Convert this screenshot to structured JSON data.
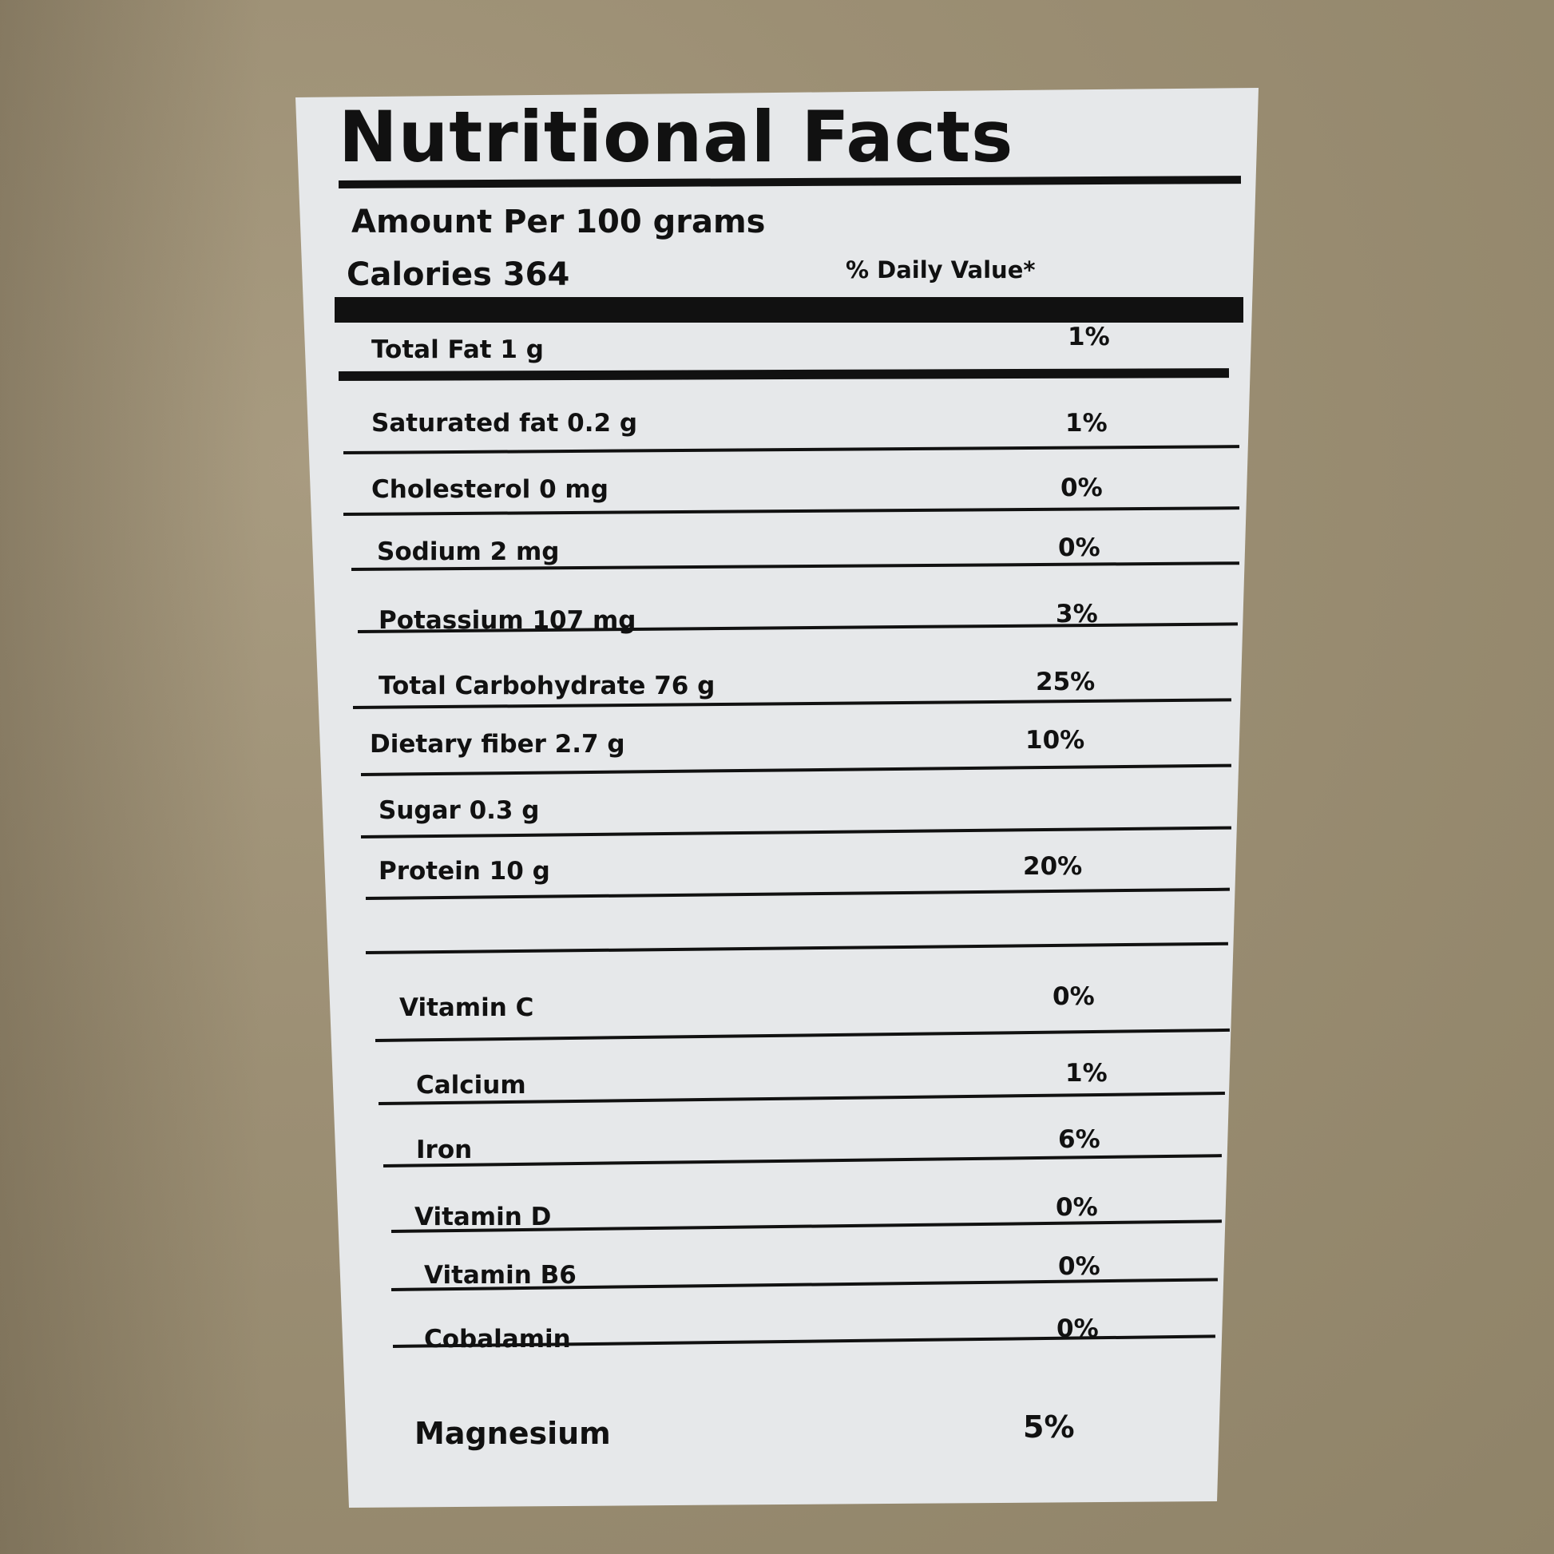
{
  "label": {
    "title": "Nutritional Facts",
    "serving": "Amount Per 100 grams",
    "calories": "Calories 364",
    "daily_value_header": "% Daily Value*",
    "rows": [
      {
        "name": "Total Fat 1 g",
        "dv": "1%"
      },
      {
        "name": "Saturated fat 0.2 g",
        "dv": "1%"
      },
      {
        "name": "Cholesterol 0 mg",
        "dv": "0%"
      },
      {
        "name": "Sodium 2 mg",
        "dv": "0%"
      },
      {
        "name": "Potassium 107 mg",
        "dv": "3%"
      },
      {
        "name": "Total Carbohydrate 76 g",
        "dv": "25%"
      },
      {
        "name": "Dietary fiber 2.7 g",
        "dv": "10%"
      },
      {
        "name": "Sugar 0.3 g",
        "dv": ""
      },
      {
        "name": "Protein 10 g",
        "dv": "20%"
      },
      {
        "name": "Vitamin C",
        "dv": "0%"
      },
      {
        "name": "Calcium",
        "dv": "1%"
      },
      {
        "name": "Iron",
        "dv": "6%"
      },
      {
        "name": "Vitamin D",
        "dv": "0%"
      },
      {
        "name": "Vitamin B6",
        "dv": "0%"
      },
      {
        "name": "Cobalamin",
        "dv": "0%"
      },
      {
        "name": "Magnesium",
        "dv": "5%"
      }
    ]
  }
}
